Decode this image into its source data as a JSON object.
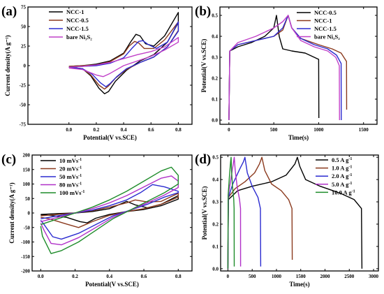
{
  "chart_data": [
    {
      "panel": "(a)",
      "type": "line",
      "xlabel": "Potential(V vs.SCE)",
      "ylabel": "Current density(A g⁻¹)",
      "xlim": [
        -0.3,
        0.9
      ],
      "ylim": [
        -75,
        75
      ],
      "xticks": [
        "0.0",
        "0.2",
        "0.4",
        "0.6",
        "0.8"
      ],
      "yticks": [
        "-75",
        "-50",
        "-25",
        "0",
        "25",
        "50",
        "75"
      ],
      "legend": "top-left",
      "series": [
        {
          "name": "NCC-1",
          "color": "#000000",
          "x": [
            0.0,
            0.1,
            0.2,
            0.3,
            0.4,
            0.45,
            0.49,
            0.52,
            0.56,
            0.62,
            0.7,
            0.8,
            0.8,
            0.72,
            0.62,
            0.52,
            0.42,
            0.34,
            0.29,
            0.26,
            0.22,
            0.16,
            0.1,
            0.0
          ],
          "y": [
            -1,
            0,
            2,
            6,
            16,
            30,
            40,
            38,
            28,
            25,
            38,
            68,
            55,
            30,
            14,
            6,
            -6,
            -20,
            -33,
            -36,
            -29,
            -13,
            -4,
            -2
          ]
        },
        {
          "name": "NCC-0.5",
          "color": "#8b3a1e",
          "x": [
            0.0,
            0.1,
            0.2,
            0.3,
            0.4,
            0.44,
            0.48,
            0.51,
            0.55,
            0.62,
            0.7,
            0.8,
            0.8,
            0.72,
            0.62,
            0.52,
            0.42,
            0.34,
            0.29,
            0.26,
            0.22,
            0.16,
            0.1,
            0.0
          ],
          "y": [
            -1,
            0,
            1,
            5,
            15,
            25,
            31,
            29,
            22,
            22,
            33,
            56,
            45,
            24,
            11,
            4,
            -5,
            -16,
            -26,
            -30,
            -25,
            -12,
            -4,
            -2
          ]
        },
        {
          "name": "NCC-1.5",
          "color": "#2b2bd0",
          "x": [
            0.0,
            0.1,
            0.2,
            0.3,
            0.4,
            0.46,
            0.51,
            0.54,
            0.58,
            0.64,
            0.72,
            0.8,
            0.8,
            0.72,
            0.62,
            0.52,
            0.42,
            0.35,
            0.3,
            0.27,
            0.23,
            0.17,
            0.1,
            0.0
          ],
          "y": [
            -2,
            -1,
            0,
            3,
            10,
            22,
            31,
            32,
            27,
            22,
            30,
            56,
            44,
            24,
            11,
            4,
            -4,
            -14,
            -23,
            -27,
            -22,
            -11,
            -4,
            -2
          ]
        },
        {
          "name": "bare Ni₃S₂",
          "color": "#c040c8",
          "x": [
            0.0,
            0.1,
            0.2,
            0.3,
            0.4,
            0.5,
            0.6,
            0.7,
            0.8,
            0.8,
            0.7,
            0.6,
            0.5,
            0.4,
            0.3,
            0.25,
            0.2,
            0.1,
            0.0
          ],
          "y": [
            -2,
            -1,
            1,
            4,
            9,
            14,
            18,
            24,
            36,
            30,
            20,
            12,
            6,
            0,
            -10,
            -14,
            -12,
            -5,
            -3
          ]
        }
      ]
    },
    {
      "panel": "(b)",
      "type": "line",
      "xlabel": "Time(s)",
      "ylabel": "Potential(V vs.SCE)",
      "xlim": [
        -100,
        1650
      ],
      "ylim": [
        -0.02,
        0.54
      ],
      "xticks": [
        "0",
        "500",
        "1000",
        "1500"
      ],
      "yticks": [
        "0.0",
        "0.1",
        "0.2",
        "0.3",
        "0.4",
        "0.5"
      ],
      "legend": "top-right",
      "series": [
        {
          "name": "NCC-0.5",
          "color": "#000000",
          "x": [
            0,
            10,
            100,
            250,
            400,
            500,
            530,
            560,
            600,
            700,
            850,
            950,
            1000,
            1002
          ],
          "y": [
            0.0,
            0.33,
            0.35,
            0.37,
            0.4,
            0.44,
            0.5,
            0.4,
            0.34,
            0.33,
            0.32,
            0.3,
            0.29,
            0.01
          ]
        },
        {
          "name": "NCC-1",
          "color": "#8b3a1e",
          "x": [
            0,
            10,
            100,
            300,
            500,
            600,
            660,
            700,
            800,
            1000,
            1150,
            1250,
            1310,
            1312
          ],
          "y": [
            0.0,
            0.33,
            0.36,
            0.38,
            0.4,
            0.43,
            0.5,
            0.44,
            0.39,
            0.36,
            0.34,
            0.32,
            0.28,
            0.05
          ]
        },
        {
          "name": "NCC-1.5",
          "color": "#2b2bd0",
          "x": [
            0,
            10,
            100,
            300,
            500,
            600,
            660,
            700,
            800,
            950,
            1100,
            1200,
            1250,
            1252
          ],
          "y": [
            0.0,
            0.33,
            0.36,
            0.38,
            0.4,
            0.44,
            0.5,
            0.44,
            0.39,
            0.36,
            0.34,
            0.31,
            0.27,
            0.0
          ]
        },
        {
          "name": "bare Ni₃S₂",
          "color": "#c040c8",
          "x": [
            0,
            10,
            100,
            300,
            500,
            600,
            660,
            700,
            800,
            950,
            1100,
            1190,
            1230,
            1232
          ],
          "y": [
            0.0,
            0.33,
            0.37,
            0.4,
            0.44,
            0.47,
            0.5,
            0.44,
            0.38,
            0.35,
            0.33,
            0.3,
            0.26,
            0.0
          ]
        }
      ]
    },
    {
      "panel": "(c)",
      "type": "line",
      "xlabel": "Potential(V vs.SCE)",
      "ylabel": "Current density(A g⁻¹)",
      "xlim": [
        -0.05,
        0.88
      ],
      "ylim": [
        -200,
        200
      ],
      "xticks": [
        "0.0",
        "0.2",
        "0.4",
        "0.6",
        "0.8"
      ],
      "yticks": [
        "-200",
        "-150",
        "-100",
        "-50",
        "0",
        "50",
        "100",
        "150",
        "200"
      ],
      "legend": "top-left",
      "legend_entries": [
        {
          "value": "10",
          "unit": "mVs",
          "sup": "-1"
        },
        {
          "value": "20",
          "unit": "mVs",
          "sup": "-1"
        },
        {
          "value": "50",
          "unit": "mVs",
          "sup": "-1"
        },
        {
          "value": "80",
          "unit": "mVs",
          "sup": "-1"
        },
        {
          "value": "100",
          "unit": "mVs",
          "sup": "-1"
        }
      ],
      "series": [
        {
          "name": "10 mVs⁻¹",
          "color": "#000000",
          "x": [
            0.0,
            0.1,
            0.2,
            0.3,
            0.4,
            0.46,
            0.5,
            0.55,
            0.62,
            0.7,
            0.8,
            0.8,
            0.7,
            0.6,
            0.5,
            0.4,
            0.32,
            0.27,
            0.23,
            0.15,
            0.05,
            0.0
          ],
          "y": [
            -5,
            -2,
            0,
            5,
            15,
            30,
            40,
            28,
            18,
            30,
            60,
            48,
            25,
            12,
            5,
            -5,
            -18,
            -34,
            -30,
            -15,
            -8,
            -6
          ]
        },
        {
          "name": "20 mVs⁻¹",
          "color": "#8b3a1e",
          "x": [
            0.0,
            0.1,
            0.2,
            0.3,
            0.4,
            0.5,
            0.55,
            0.62,
            0.7,
            0.8,
            0.8,
            0.7,
            0.6,
            0.5,
            0.4,
            0.3,
            0.22,
            0.15,
            0.05,
            0.0
          ],
          "y": [
            -10,
            -5,
            0,
            8,
            20,
            35,
            45,
            38,
            40,
            68,
            55,
            30,
            15,
            5,
            -8,
            -30,
            -50,
            -38,
            -20,
            -15
          ]
        },
        {
          "name": "50 mVs⁻¹",
          "color": "#2b2bd0",
          "x": [
            0.0,
            0.1,
            0.2,
            0.3,
            0.4,
            0.5,
            0.58,
            0.65,
            0.72,
            0.8,
            0.8,
            0.72,
            0.62,
            0.52,
            0.42,
            0.32,
            0.22,
            0.12,
            0.07,
            0.02,
            0.0
          ],
          "y": [
            -20,
            -10,
            0,
            10,
            25,
            45,
            70,
            98,
            90,
            75,
            70,
            55,
            30,
            10,
            -10,
            -40,
            -70,
            -90,
            -82,
            -40,
            -25
          ]
        },
        {
          "name": "80 mVs⁻¹",
          "color": "#b030c8",
          "x": [
            0.0,
            0.1,
            0.2,
            0.3,
            0.4,
            0.5,
            0.6,
            0.7,
            0.76,
            0.8,
            0.8,
            0.72,
            0.62,
            0.52,
            0.42,
            0.32,
            0.22,
            0.12,
            0.06,
            0.02,
            0.0
          ],
          "y": [
            -30,
            -15,
            0,
            15,
            35,
            60,
            90,
            120,
            128,
            110,
            88,
            62,
            35,
            10,
            -15,
            -50,
            -85,
            -110,
            -105,
            -60,
            -35
          ]
        },
        {
          "name": "100 mVs⁻¹",
          "color": "#1e8c2a",
          "x": [
            0.0,
            0.1,
            0.2,
            0.3,
            0.4,
            0.5,
            0.6,
            0.7,
            0.76,
            0.8,
            0.8,
            0.72,
            0.62,
            0.52,
            0.42,
            0.32,
            0.22,
            0.12,
            0.06,
            0.01,
            0.0
          ],
          "y": [
            -40,
            -20,
            0,
            20,
            45,
            75,
            110,
            145,
            158,
            130,
            100,
            70,
            40,
            10,
            -20,
            -60,
            -100,
            -130,
            -140,
            -80,
            -45
          ]
        }
      ]
    },
    {
      "panel": "(d)",
      "type": "line",
      "xlabel": "Time(s)",
      "ylabel": "Potential(V vs.SCE)",
      "xlim": [
        -150,
        3100
      ],
      "ylim": [
        -0.01,
        0.51
      ],
      "xticks": [
        "0",
        "500",
        "1000",
        "1500",
        "2000",
        "2500",
        "3000"
      ],
      "yticks": [
        "0.0",
        "0.1",
        "0.2",
        "0.3",
        "0.4",
        "0.5"
      ],
      "legend": "top-right",
      "legend_entries": [
        {
          "value": "0.5",
          "unit": "A g",
          "sup": "-1"
        },
        {
          "value": "1.0",
          "unit": "A g",
          "sup": "-1"
        },
        {
          "value": "2.0",
          "unit": "A g",
          "sup": "-1"
        },
        {
          "value": "5.0",
          "unit": "A g",
          "sup": "-1"
        },
        {
          "value": "10.0",
          "unit": "A g",
          "sup": "-1"
        }
      ],
      "series": [
        {
          "name": "0.5 A g⁻¹",
          "color": "#000000",
          "x": [
            0,
            10,
            200,
            500,
            900,
            1200,
            1380,
            1430,
            1480,
            1600,
            1900,
            2300,
            2600,
            2750,
            2760
          ],
          "y": [
            0.0,
            0.31,
            0.35,
            0.37,
            0.39,
            0.42,
            0.47,
            0.5,
            0.46,
            0.4,
            0.37,
            0.34,
            0.31,
            0.27,
            0.0
          ]
        },
        {
          "name": "1.0 A g⁻¹",
          "color": "#8b3a1e",
          "x": [
            0,
            10,
            150,
            350,
            550,
            650,
            700,
            760,
            900,
            1100,
            1250,
            1320,
            1325
          ],
          "y": [
            0.0,
            0.32,
            0.36,
            0.39,
            0.43,
            0.47,
            0.5,
            0.44,
            0.38,
            0.35,
            0.31,
            0.27,
            0.04
          ]
        },
        {
          "name": "2.0 A g⁻¹",
          "color": "#2b2bd0",
          "x": [
            0,
            10,
            100,
            250,
            320,
            350,
            400,
            500,
            620,
            670,
            675
          ],
          "y": [
            0.0,
            0.32,
            0.38,
            0.45,
            0.48,
            0.5,
            0.43,
            0.37,
            0.32,
            0.27,
            0.01
          ]
        },
        {
          "name": "5.0 A g⁻¹",
          "color": "#b030c8",
          "x": [
            0,
            8,
            60,
            110,
            130,
            150,
            190,
            240,
            260,
            262
          ],
          "y": [
            0.0,
            0.33,
            0.4,
            0.47,
            0.5,
            0.44,
            0.37,
            0.31,
            0.27,
            0.01
          ]
        },
        {
          "name": "10.0 A g⁻¹",
          "color": "#1e8c2a",
          "x": [
            0,
            6,
            30,
            55,
            65,
            75,
            95,
            120,
            128,
            130
          ],
          "y": [
            0.0,
            0.33,
            0.41,
            0.48,
            0.5,
            0.44,
            0.37,
            0.31,
            0.27,
            0.01
          ]
        }
      ]
    }
  ]
}
